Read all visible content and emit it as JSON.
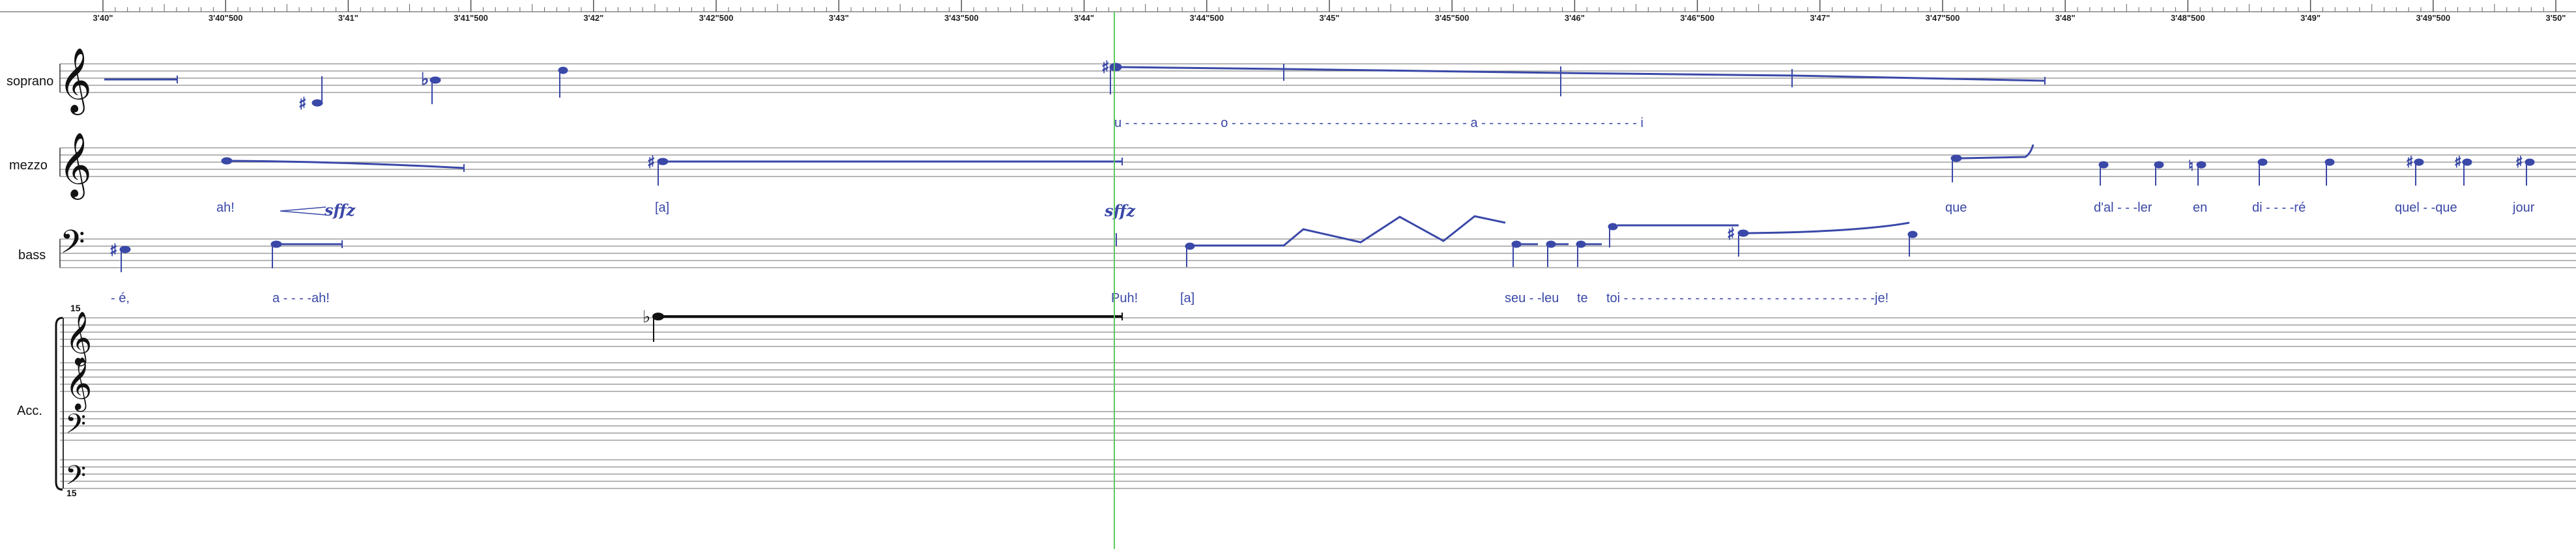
{
  "ruler": {
    "ticks": [
      "3'40\"",
      "3'40\"500",
      "3'41\"",
      "3'41\"500",
      "3'42\"",
      "3'42\"500",
      "3'43\"",
      "3'43\"500",
      "3'44\"",
      "3'44\"500",
      "3'45\"",
      "3'45\"500",
      "3'46\"",
      "3'46\"500",
      "3'47\"",
      "3'47\"500",
      "3'48\"",
      "3'48\"500",
      "3'49\"",
      "3'49\"500",
      "3'50\""
    ]
  },
  "staves": {
    "soprano": {
      "name": "soprano"
    },
    "mezzo": {
      "name": "mezzo"
    },
    "bass": {
      "name": "bass"
    },
    "acc": {
      "name": "Acc.",
      "octave_top": "15",
      "octave_bottom": "15"
    }
  },
  "lyrics": {
    "soprano_line": "u - - - - - - - - - - - - o - - - - - - - - - - - - - - - - - - - - - - - - - - - - - - a - - - - - - - - - - - - - - - - - - - - i",
    "mezzo": [
      "ah!",
      "[a]",
      "que",
      "d'al - - -ler",
      "en",
      "di - - - -ré",
      "quel - -que",
      "jour"
    ],
    "bass": [
      "- é,",
      "a - - - -ah!",
      "Puh!",
      "[a]",
      "seu - -leu",
      "te",
      "toi - - - - - - - - - - - - - - - - - - - - - - - - - - - - - - - -je!"
    ]
  },
  "dynamics": {
    "mezzo_sffz": "sffz",
    "bass_sffz": "sffz"
  },
  "colors": {
    "note": "#3a48a8",
    "playhead": "#5ec85e",
    "staff": "#333333",
    "acc_note": "#111111"
  }
}
